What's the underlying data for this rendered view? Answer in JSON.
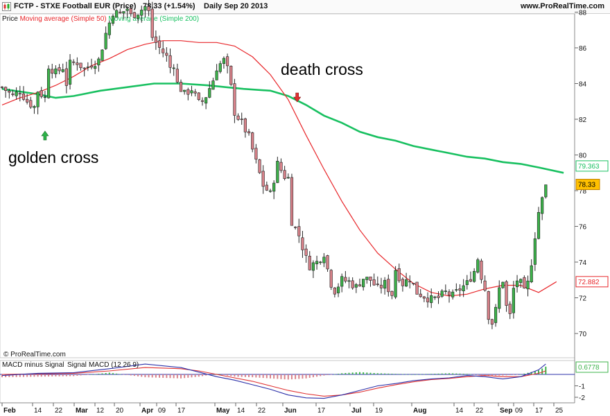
{
  "header": {
    "title": "FCTP - STXE Football EUR (Price)",
    "price_change": "78.33 (+1.54%)",
    "period_date": "Daily  Sep 20 2013",
    "site": "www.ProRealTime.com"
  },
  "legend": {
    "price": "Price",
    "ma50": "Moving average (Simple 50)",
    "ma200": "Moving average (Simple 200)"
  },
  "watermark": "© ProRealTime.com",
  "macd_legend": {
    "hist": "MACD minus Signal",
    "signal": "Signal",
    "macd": "MACD (12 26 9)"
  },
  "colors": {
    "bull": "#3cb34a",
    "bear": "#d9828a",
    "ma50": "#e8262a",
    "ma200": "#18c060",
    "macd": "#2a2fa8",
    "signal": "#e03030",
    "annotation_up": "#2db34a",
    "annotation_down": "#e03030"
  },
  "chart_data": [
    {
      "type": "candlestick",
      "title": "FCTP - STXE Football EUR (Price)",
      "y_ticks": [
        70,
        72,
        74,
        76,
        78,
        80,
        82,
        84,
        86,
        88
      ],
      "x_tick_labels": [
        "Feb",
        "14",
        "22",
        "Mar",
        "12",
        "20",
        "Apr",
        "09",
        "17",
        "May",
        "14",
        "22",
        "Jun",
        "17",
        "Jul",
        "19",
        "Aug",
        "14",
        "22",
        "Sep",
        "09",
        "17",
        "25"
      ],
      "last_value": "78.33",
      "ma50_last": "72.882",
      "ma200_last": "79.363",
      "annotations": [
        {
          "text": "golden cross",
          "x_index": 24,
          "value": 82.5,
          "direction": "up"
        },
        {
          "text": "death cross",
          "x_index": 165,
          "value": 84.5,
          "direction": "down"
        }
      ],
      "series": [
        {
          "name": "Moving average (Simple 50)",
          "values": [
            [
              0,
              82.8
            ],
            [
              10,
              83.2
            ],
            [
              20,
              83.5
            ],
            [
              30,
              83.9
            ],
            [
              40,
              84.4
            ],
            [
              50,
              85.0
            ],
            [
              60,
              85.4
            ],
            [
              70,
              85.9
            ],
            [
              80,
              86.2
            ],
            [
              90,
              86.4
            ],
            [
              100,
              86.4
            ],
            [
              110,
              86.3
            ],
            [
              120,
              86.3
            ],
            [
              130,
              86.1
            ],
            [
              140,
              85.5
            ],
            [
              150,
              84.5
            ],
            [
              160,
              83.1
            ],
            [
              170,
              81.1
            ],
            [
              180,
              79.2
            ],
            [
              190,
              77.4
            ],
            [
              200,
              75.8
            ],
            [
              210,
              74.5
            ],
            [
              220,
              73.6
            ],
            [
              230,
              72.8
            ],
            [
              240,
              72.3
            ],
            [
              250,
              72.1
            ],
            [
              260,
              72.2
            ],
            [
              270,
              72.5
            ],
            [
              280,
              72.7
            ],
            [
              290,
              72.7
            ],
            [
              300,
              72.3
            ],
            [
              310,
              72.9
            ]
          ]
        },
        {
          "name": "Moving average (Simple 200)",
          "values": [
            [
              0,
              83.7
            ],
            [
              20,
              83.4
            ],
            [
              30,
              83.2
            ],
            [
              40,
              83.3
            ],
            [
              55,
              83.6
            ],
            [
              70,
              83.8
            ],
            [
              85,
              84.0
            ],
            [
              100,
              84.0
            ],
            [
              115,
              83.9
            ],
            [
              125,
              83.8
            ],
            [
              135,
              83.7
            ],
            [
              150,
              83.6
            ],
            [
              160,
              83.3
            ],
            [
              170,
              82.8
            ],
            [
              180,
              82.2
            ],
            [
              190,
              81.8
            ],
            [
              200,
              81.3
            ],
            [
              210,
              81.0
            ],
            [
              220,
              80.8
            ],
            [
              230,
              80.5
            ],
            [
              240,
              80.3
            ],
            [
              250,
              80.1
            ],
            [
              260,
              79.9
            ],
            [
              270,
              79.8
            ],
            [
              280,
              79.6
            ],
            [
              290,
              79.5
            ],
            [
              300,
              79.3
            ],
            [
              314,
              79.0
            ]
          ]
        },
        {
          "name": "Price",
          "values": [
            [
              0,
              83.8
            ],
            [
              6,
              83.3
            ],
            [
              10,
              83.6
            ],
            [
              14,
              83.0
            ],
            [
              18,
              82.7
            ],
            [
              20,
              83.6
            ],
            [
              24,
              83.2
            ],
            [
              26,
              85.0
            ],
            [
              30,
              84.6
            ],
            [
              34,
              84.9
            ],
            [
              36,
              84.0
            ],
            [
              38,
              85.1
            ],
            [
              42,
              85.2
            ],
            [
              46,
              84.8
            ],
            [
              50,
              85.1
            ],
            [
              54,
              85.3
            ],
            [
              58,
              86.8
            ],
            [
              62,
              88.0
            ],
            [
              66,
              87.9
            ],
            [
              70,
              88.2
            ],
            [
              72,
              87.8
            ],
            [
              76,
              88.0
            ],
            [
              80,
              88.3
            ],
            [
              82,
              88.0
            ],
            [
              84,
              86.6
            ],
            [
              88,
              86.0
            ],
            [
              92,
              85.5
            ],
            [
              94,
              84.9
            ],
            [
              96,
              85.1
            ],
            [
              98,
              84.0
            ],
            [
              102,
              83.4
            ],
            [
              106,
              83.7
            ],
            [
              110,
              82.9
            ],
            [
              112,
              83.0
            ],
            [
              114,
              83.3
            ],
            [
              118,
              84.2
            ],
            [
              120,
              84.9
            ],
            [
              124,
              85.3
            ],
            [
              126,
              84.8
            ],
            [
              128,
              83.8
            ],
            [
              130,
              82.4
            ],
            [
              134,
              81.8
            ],
            [
              138,
              81.0
            ],
            [
              142,
              79.6
            ],
            [
              146,
              78.3
            ],
            [
              150,
              77.8
            ],
            [
              154,
              79.5
            ],
            [
              158,
              78.8
            ],
            [
              160,
              78.7
            ],
            [
              162,
              76.3
            ],
            [
              166,
              75.5
            ],
            [
              170,
              74.2
            ],
            [
              172,
              73.8
            ],
            [
              176,
              74.0
            ],
            [
              180,
              74.5
            ],
            [
              182,
              73.6
            ],
            [
              184,
              72.8
            ],
            [
              186,
              72.4
            ],
            [
              190,
              73.0
            ],
            [
              194,
              72.9
            ],
            [
              198,
              72.6
            ],
            [
              202,
              73.1
            ],
            [
              206,
              73.0
            ],
            [
              210,
              72.5
            ],
            [
              214,
              72.8
            ],
            [
              218,
              72.2
            ],
            [
              220,
              73.6
            ],
            [
              224,
              72.8
            ],
            [
              228,
              73.1
            ],
            [
              232,
              72.3
            ],
            [
              236,
              72.1
            ],
            [
              240,
              71.9
            ],
            [
              244,
              72.0
            ],
            [
              248,
              72.3
            ],
            [
              252,
              72.1
            ],
            [
              256,
              72.5
            ],
            [
              260,
              72.8
            ],
            [
              264,
              73.5
            ],
            [
              266,
              74.2
            ],
            [
              268,
              73.2
            ],
            [
              270,
              72.5
            ],
            [
              272,
              71.0
            ],
            [
              274,
              70.6
            ],
            [
              276,
              71.3
            ],
            [
              278,
              72.5
            ],
            [
              280,
              73.0
            ],
            [
              282,
              71.5
            ],
            [
              284,
              71.0
            ],
            [
              286,
              72.5
            ],
            [
              288,
              73.0
            ],
            [
              290,
              72.8
            ],
            [
              292,
              72.3
            ],
            [
              294,
              72.8
            ],
            [
              296,
              74.0
            ],
            [
              298,
              75.5
            ],
            [
              300,
              76.8
            ],
            [
              302,
              77.5
            ],
            [
              304,
              78.33
            ]
          ]
        }
      ]
    },
    {
      "type": "bar",
      "title": "MACD (12 26 9)",
      "y_ticks": [
        -2,
        -1
      ],
      "last_value": "0.6778",
      "series": [
        {
          "name": "MACD minus Signal",
          "values": [
            [
              0,
              -0.25
            ],
            [
              20,
              -0.2
            ],
            [
              40,
              -0.15
            ],
            [
              60,
              0.15
            ],
            [
              80,
              -0.25
            ],
            [
              100,
              -0.35
            ],
            [
              110,
              -0.2
            ],
            [
              120,
              0.05
            ],
            [
              130,
              -0.2
            ],
            [
              140,
              -0.25
            ],
            [
              150,
              -0.35
            ],
            [
              160,
              -0.45
            ],
            [
              170,
              -0.35
            ],
            [
              180,
              -0.1
            ],
            [
              190,
              0.1
            ],
            [
              200,
              0.2
            ],
            [
              210,
              0.1
            ],
            [
              220,
              0.05
            ],
            [
              230,
              0.0
            ],
            [
              240,
              0.05
            ],
            [
              250,
              0.1
            ],
            [
              260,
              0.05
            ],
            [
              270,
              -0.1
            ],
            [
              280,
              -0.1
            ],
            [
              290,
              0.0
            ],
            [
              300,
              0.35
            ],
            [
              304,
              0.6778
            ]
          ]
        },
        {
          "name": "MACD",
          "values": [
            [
              0,
              -0.1
            ],
            [
              20,
              0.1
            ],
            [
              40,
              0.15
            ],
            [
              60,
              0.5
            ],
            [
              80,
              0.9
            ],
            [
              100,
              0.6
            ],
            [
              110,
              0.2
            ],
            [
              120,
              -0.2
            ],
            [
              130,
              -0.5
            ],
            [
              140,
              -0.9
            ],
            [
              150,
              -1.3
            ],
            [
              160,
              -1.8
            ],
            [
              170,
              -2.05
            ],
            [
              180,
              -2.1
            ],
            [
              190,
              -1.8
            ],
            [
              200,
              -1.4
            ],
            [
              210,
              -1.0
            ],
            [
              220,
              -0.8
            ],
            [
              230,
              -0.55
            ],
            [
              240,
              -0.4
            ],
            [
              250,
              -0.3
            ],
            [
              260,
              -0.1
            ],
            [
              270,
              -0.2
            ],
            [
              280,
              -0.4
            ],
            [
              290,
              -0.2
            ],
            [
              300,
              0.4
            ],
            [
              304,
              0.9
            ]
          ]
        },
        {
          "name": "Signal",
          "values": [
            [
              0,
              0.0
            ],
            [
              20,
              0.05
            ],
            [
              40,
              0.1
            ],
            [
              60,
              0.3
            ],
            [
              80,
              0.6
            ],
            [
              100,
              0.5
            ],
            [
              110,
              0.3
            ],
            [
              120,
              0.0
            ],
            [
              130,
              -0.3
            ],
            [
              140,
              -0.6
            ],
            [
              150,
              -1.0
            ],
            [
              160,
              -1.4
            ],
            [
              170,
              -1.7
            ],
            [
              180,
              -1.9
            ],
            [
              190,
              -1.8
            ],
            [
              200,
              -1.55
            ],
            [
              210,
              -1.2
            ],
            [
              220,
              -0.9
            ],
            [
              230,
              -0.65
            ],
            [
              240,
              -0.45
            ],
            [
              250,
              -0.35
            ],
            [
              260,
              -0.2
            ],
            [
              270,
              -0.1
            ],
            [
              280,
              -0.2
            ],
            [
              290,
              -0.2
            ],
            [
              300,
              0.1
            ],
            [
              304,
              0.3
            ]
          ]
        }
      ]
    }
  ]
}
